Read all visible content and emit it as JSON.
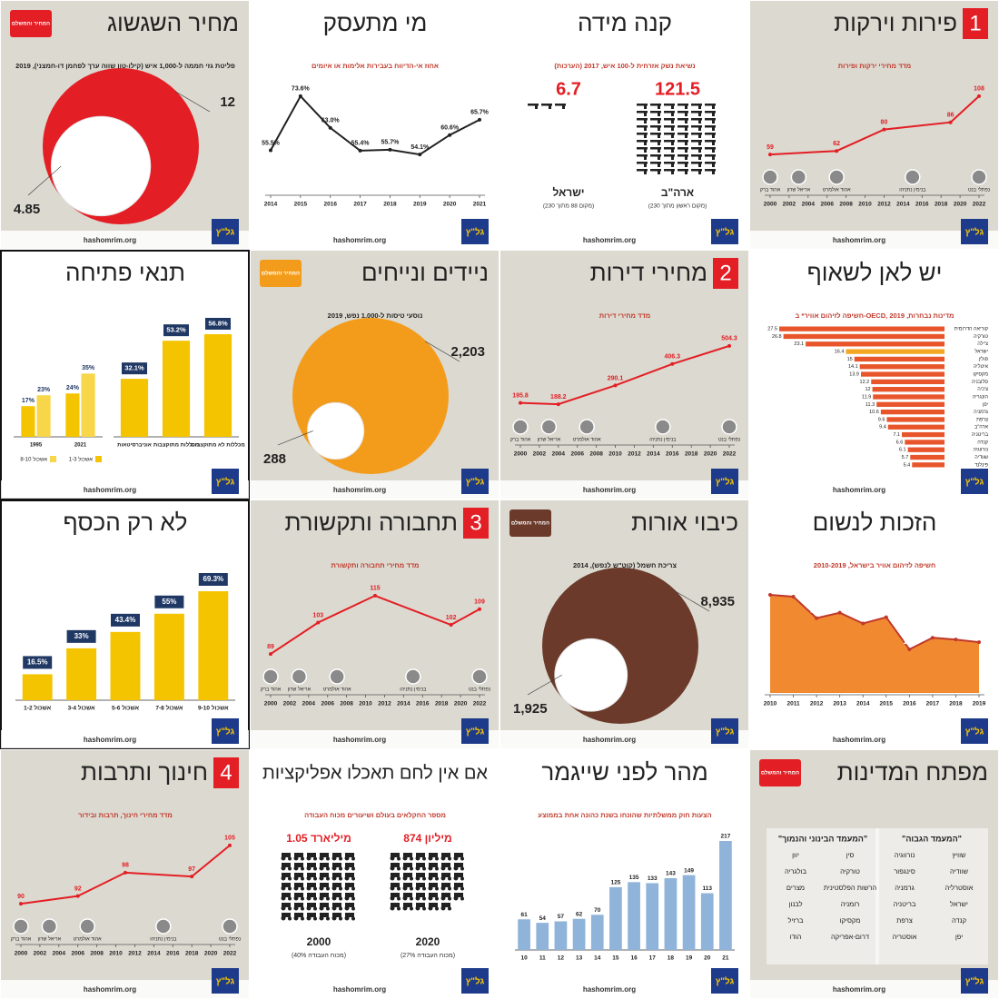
{
  "footer": {
    "site": "hashomrim.org",
    "logo": "גל\"ץ"
  },
  "chart_data": [
    {
      "type": "circles",
      "title": "מחיר השגשוג",
      "badge": "המחיר והמשלם",
      "badge_color": "#e31e24",
      "background": "#dcd9d0",
      "chart_label": "פליטת גזי חממה ל-1,000 איש (קילו-טון שווה ערך לפחמן דו-חמצני), 2019",
      "values": [
        12,
        4.85
      ],
      "color": "#e31e24"
    },
    {
      "type": "line",
      "title": "מי מתעסק",
      "background": "#ffffff",
      "chart_label": "אחוז אי-הדיווח בעבירות אלימות או איומים",
      "x": [
        2014,
        2015,
        2016,
        2017,
        2018,
        2019,
        2020,
        2021
      ],
      "xlim": [
        2014,
        2021
      ],
      "xticks": [
        2014,
        2015,
        2016,
        2017,
        2018,
        2019,
        2020,
        2021
      ],
      "values": [
        55.5,
        73.6,
        63.0,
        55.4,
        55.7,
        54.1,
        60.6,
        65.7
      ],
      "value_labels": [
        "55.5%",
        "73.6%",
        "63.0%",
        "55.4%",
        "55.7%",
        "54.1%",
        "60.6%",
        "65.7%"
      ],
      "color": "#222222"
    },
    {
      "type": "pictogram",
      "title": "קנה מידה",
      "background": "#ffffff",
      "chart_label": "נשיאת נשק אזרחית ל-100 איש, 2017 (הערכות)",
      "categories": [
        "ישראל",
        "ארה\"ב"
      ],
      "sublabels": [
        "(מקום 88 מתוך 230)",
        "(מקום ראשון מתוך 230)"
      ],
      "values": [
        6.7,
        121.5
      ],
      "color": "#222222",
      "value_color": "#e31e24"
    },
    {
      "type": "line",
      "number": "1",
      "title": "פירות וירקות",
      "background": "#dcd9d0",
      "chart_label": "מדד מחירי ירקות ופירות",
      "x": [
        2000,
        2007,
        2012,
        2019,
        2022
      ],
      "xlim": [
        2000,
        2022
      ],
      "xticks": [
        2000,
        2002,
        2004,
        2006,
        2008,
        2010,
        2012,
        2014,
        2016,
        2018,
        2020,
        2022
      ],
      "values": [
        59,
        62,
        80,
        86,
        108
      ],
      "color": "#e31e24",
      "leaders": [
        {
          "name": "אהוד ברק",
          "year": 2000
        },
        {
          "name": "אריאל שרון",
          "year": 2003
        },
        {
          "name": "אהוד אולמרט",
          "year": 2007
        },
        {
          "name": "בנימין נתניהו",
          "year": 2015
        },
        {
          "name": "נפתלי בנט",
          "year": 2022
        }
      ]
    },
    {
      "type": "grouped-bar",
      "title": "תנאי פתיחה",
      "background": "#ffffff",
      "border": true,
      "panels": [
        {
          "categories": [
            "1995",
            "2021"
          ],
          "series": [
            {
              "name": "אשכול 1-3",
              "color": "#f5c400",
              "values": [
                17,
                24
              ],
              "value_labels": [
                "17%",
                "24%"
              ]
            },
            {
              "name": "אשכול 8-10",
              "color": "#f7d64a",
              "values": [
                23,
                35
              ],
              "value_labels": [
                "23%",
                "35%"
              ]
            }
          ]
        },
        {
          "categories": [
            "אוניברסיטאות",
            "מכללות מתוקצבות",
            "מכללות לא מתוקצבות"
          ],
          "color": "#f5c400",
          "values": [
            32.1,
            53.2,
            56.8
          ],
          "value_labels": [
            "32.1%",
            "53.2%",
            "56.8%"
          ]
        }
      ]
    },
    {
      "type": "circles",
      "title": "ניידים ונייחים",
      "badge": "המחיר והמשלם",
      "badge_color": "#f39c1b",
      "background": "#dcd9d0",
      "chart_label": "נוסעי טיסות ל-1,000 נפש, 2019",
      "values": [
        2203,
        288
      ],
      "value_labels": [
        "2,203",
        "288"
      ],
      "color": "#f39c1b"
    },
    {
      "type": "line",
      "number": "2",
      "title": "מחירי דירות",
      "background": "#dcd9d0",
      "chart_label": "מדד מחירי דירות",
      "x": [
        2000,
        2004,
        2010,
        2016,
        2022
      ],
      "xlim": [
        2000,
        2022
      ],
      "xticks": [
        2000,
        2002,
        2004,
        2006,
        2008,
        2010,
        2012,
        2014,
        2016,
        2018,
        2020,
        2022
      ],
      "values": [
        195.8,
        188.2,
        290.1,
        406.3,
        504.3
      ],
      "color": "#e31e24",
      "leaders": [
        {
          "name": "אהוד ברק",
          "year": 2000
        },
        {
          "name": "אריאל שרון",
          "year": 2003
        },
        {
          "name": "אהוד אולמרט",
          "year": 2007
        },
        {
          "name": "בנימין נתניהו",
          "year": 2015
        },
        {
          "name": "נפתלי בנט",
          "year": 2022
        }
      ]
    },
    {
      "type": "hbar",
      "title": "יש לאן לשאוף",
      "background": "#ffffff",
      "chart_label": "חשיפה לזיהום אוויר* ב-OECD, מדינות נבחרות, 2019",
      "categories": [
        "קוריאה הדרומית",
        "טורקיה",
        "צ'ילה",
        "ישראל",
        "פולין",
        "איטליה",
        "מקסיקו",
        "סלובניה",
        "צ'כיה",
        "הונגריה",
        "יפן",
        "גרמניה",
        "צרפת",
        "ארה\"ב",
        "בריטניה",
        "קנדה",
        "נורווגיה",
        "שוודיה",
        "פינלנד"
      ],
      "values": [
        27.5,
        26.8,
        23.1,
        16.4,
        15.0,
        14.1,
        13.9,
        12.2,
        12.0,
        11.9,
        11.3,
        10.6,
        9.6,
        9.4,
        7.1,
        6.6,
        6.1,
        5.7,
        5.4
      ],
      "colors": [
        "#e8552b",
        "#e8552b",
        "#e8552b",
        "#f5a623",
        "#e8552b",
        "#e8552b",
        "#e8552b",
        "#e8552b",
        "#e8552b",
        "#e8552b",
        "#e8552b",
        "#e8552b",
        "#e8552b",
        "#e8552b",
        "#e8552b",
        "#e8552b",
        "#e8552b",
        "#e8552b",
        "#e8552b"
      ]
    },
    {
      "type": "bar",
      "title": "לא רק הכסף",
      "background": "#ffffff",
      "border": true,
      "label_box": "#1f3864",
      "categories": [
        "אשכול 1-2",
        "אשכול 3-4",
        "אשכול 5-6",
        "אשכול 7-8",
        "אשכול 9-10"
      ],
      "values": [
        16.5,
        33,
        43.4,
        55,
        69.3
      ],
      "value_labels": [
        "16.5%",
        "33%",
        "43.4%",
        "55%",
        "69.3%"
      ],
      "color": "#f5c400"
    },
    {
      "type": "line",
      "number": "3",
      "title": "תחבורה ותקשורת",
      "background": "#dcd9d0",
      "chart_label": "מדד מחירי תחבורה ותקשורת",
      "x": [
        2000,
        2005,
        2011,
        2019,
        2022
      ],
      "xlim": [
        2000,
        2022
      ],
      "xticks": [
        2000,
        2002,
        2004,
        2006,
        2008,
        2010,
        2012,
        2014,
        2016,
        2018,
        2020,
        2022
      ],
      "values": [
        89,
        103,
        115,
        102,
        109
      ],
      "color": "#e31e24",
      "leaders": [
        {
          "name": "אהוד ברק",
          "year": 2000
        },
        {
          "name": "אריאל שרון",
          "year": 2003
        },
        {
          "name": "אהוד אולמרט",
          "year": 2007
        },
        {
          "name": "בנימין נתניהו",
          "year": 2015
        },
        {
          "name": "נפתלי בנט",
          "year": 2022
        }
      ]
    },
    {
      "type": "circles",
      "title": "כיבוי אורות",
      "badge": "המחיר והמשלם",
      "badge_color": "#6b3a2a",
      "background": "#dcd9d0",
      "chart_label": "צריכת חשמל (קוט\"ש לנפש), 2014",
      "values": [
        8935,
        1925
      ],
      "value_labels": [
        "8,935",
        "1,925"
      ],
      "color": "#6b3a2a"
    },
    {
      "type": "line",
      "area": true,
      "title": "הזכות לנשום",
      "background": "#ffffff",
      "chart_label": "חשיפה לזיהום אוויר בישראל, 2010-2019",
      "x": [
        2010,
        2011,
        2012,
        2013,
        2014,
        2015,
        2016,
        2017,
        2018,
        2019
      ],
      "xlim": [
        2010,
        2019
      ],
      "xticks": [
        2010,
        2011,
        2012,
        2013,
        2014,
        2015,
        2016,
        2017,
        2018,
        2019
      ],
      "values": [
        24.7,
        24.5,
        22.1,
        22.7,
        21.5,
        22.2,
        18.6,
        19.9,
        19.7,
        19.4
      ],
      "color": "#f07c1a"
    },
    {
      "type": "line",
      "number": "4",
      "title": "חינוך ותרבות",
      "background": "#dcd9d0",
      "chart_label": "מדד מחירי חינוך, תרבות ובידור",
      "x": [
        2000,
        2006,
        2011,
        2018,
        2022
      ],
      "xlim": [
        2000,
        2022
      ],
      "xticks": [
        2000,
        2002,
        2004,
        2006,
        2008,
        2010,
        2012,
        2014,
        2016,
        2018,
        2020,
        2022
      ],
      "values": [
        90,
        92,
        98,
        97,
        105
      ],
      "color": "#e31e24",
      "leaders": [
        {
          "name": "אהוד ברק",
          "year": 2000
        },
        {
          "name": "אריאל שרון",
          "year": 2003
        },
        {
          "name": "אהוד אולמרט",
          "year": 2007
        },
        {
          "name": "בנימין נתניהו",
          "year": 2015
        },
        {
          "name": "נפתלי בנט",
          "year": 2022
        }
      ]
    },
    {
      "type": "pictogram",
      "title": "אם אין לחם תאכלו אפליקציות",
      "background": "#ffffff",
      "chart_label": "מספר החקלאים בעולם ושיעורים מכוח העבודה",
      "categories": [
        "2000",
        "2020"
      ],
      "values": [
        1050000000,
        874000000
      ],
      "value_labels": [
        "1.05 מיליארד",
        "874 מיליון"
      ],
      "shares": [
        40,
        27
      ],
      "share_labels": [
        "(40% מכוח העבודה)",
        "(27% מכוח העבודה)"
      ],
      "color": "#222222",
      "value_color": "#e31e24"
    },
    {
      "type": "bar",
      "title": "מהר לפני שייגמר",
      "background": "#ffffff",
      "chart_label": "הצעות חוק ממשלתיות שהונחו בשנת כהונה אחת בממוצע",
      "categories": [
        "10",
        "11",
        "12",
        "13",
        "14",
        "15",
        "16",
        "17",
        "18",
        "19",
        "20",
        "21"
      ],
      "values": [
        61,
        54,
        57,
        62,
        70,
        125,
        135,
        133,
        143,
        149,
        113,
        217
      ],
      "color": "#8fb3d9"
    },
    {
      "type": "list",
      "title": "מפתח המדינות",
      "badge": "המחיר והמשלם",
      "badge_color": "#e31e24",
      "background": "#dcd9d0",
      "columns": [
        {
          "heading": "\"המעמד הגבוה\"",
          "items": [
            "שוויץ",
            "נורווגיה",
            "שוודיה",
            "סינגפור",
            "אוסטרליה",
            "גרמניה",
            "ישראל",
            "בריטניה",
            "קנדה",
            "צרפת",
            "יפן",
            "אוסטריה"
          ]
        },
        {
          "heading": "\"המעמד הבינוני והנמוך\"",
          "items": [
            "סין",
            "יוון",
            "טורקיה",
            "בולגריה",
            "הרשות הפלסטינית",
            "מצרים",
            "רומניה",
            "לבנון",
            "מקסיקו",
            "ברזיל",
            "דרום-אפריקה",
            "הודו"
          ]
        }
      ]
    }
  ]
}
